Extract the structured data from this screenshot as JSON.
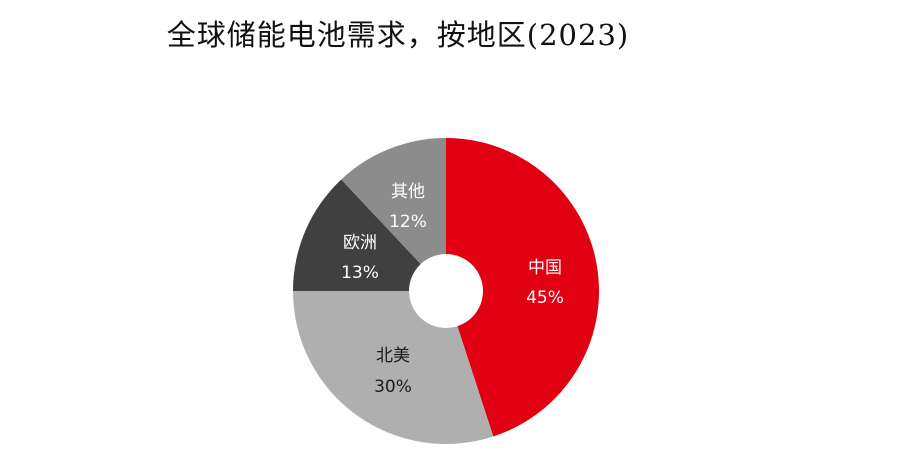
{
  "chart_data": {
    "type": "pie",
    "subtype": "donut",
    "title": "全球储能电池需求，按地区(2023)",
    "unit": "%",
    "start_angle_deg": 0,
    "direction": "clockwise",
    "categories": [
      "中国",
      "北美",
      "欧洲",
      "其他"
    ],
    "values": [
      45,
      30,
      13,
      12
    ],
    "labels": [
      "45%",
      "30%",
      "13%",
      "12%"
    ],
    "colors": [
      "#E00012",
      "#AFAFAF",
      "#404040",
      "#8C8C8C"
    ],
    "label_colors": [
      "#FFFFFF",
      "#1A1A1A",
      "#FFFFFF",
      "#FFFFFF"
    ],
    "legend": "none (labels inside slices)",
    "grid": false
  },
  "title": "全球储能电池需求，按地区(2023)",
  "slices": [
    {
      "name": "中国",
      "value_label": "45%"
    },
    {
      "name": "北美",
      "value_label": "30%"
    },
    {
      "name": "欧洲",
      "value_label": "13%"
    },
    {
      "name": "其他",
      "value_label": "12%"
    }
  ]
}
